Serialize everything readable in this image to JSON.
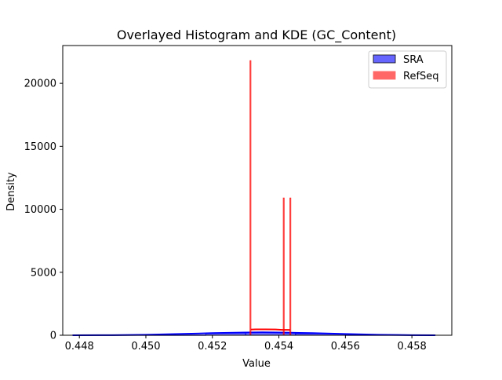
{
  "chart_data": {
    "type": "histogram",
    "title": "Overlayed Histogram and KDE (GC_Content)",
    "xlabel": "Value",
    "ylabel": "Density",
    "xlim": [
      0.4475,
      0.4592
    ],
    "ylim": [
      0,
      23000
    ],
    "x_ticks": [
      0.448,
      0.45,
      0.452,
      0.454,
      0.456,
      0.458
    ],
    "x_tick_labels": [
      "0.448",
      "0.450",
      "0.452",
      "0.454",
      "0.456",
      "0.458"
    ],
    "y_ticks": [
      0,
      5000,
      10000,
      15000,
      20000
    ],
    "y_tick_labels": [
      "0",
      "5000",
      "10000",
      "15000",
      "20000"
    ],
    "legend": {
      "placement": "top-right",
      "entries": [
        {
          "label": "SRA",
          "color": "#6666ff",
          "edge": "#000000"
        },
        {
          "label": "RefSeq",
          "color": "#ff6666",
          "edge": "#ff6666"
        }
      ]
    },
    "series": [
      {
        "name": "SRA",
        "color": "#0000ff",
        "bars": [
          {
            "x0": 0.4478,
            "x1": 0.4518,
            "value": 20
          },
          {
            "x0": 0.4518,
            "x1": 0.453,
            "value": 180
          },
          {
            "x0": 0.453,
            "x1": 0.4545,
            "value": 220
          },
          {
            "x0": 0.4545,
            "x1": 0.456,
            "value": 120
          },
          {
            "x0": 0.456,
            "x1": 0.4587,
            "value": 20
          }
        ],
        "kde": {
          "x": [
            0.4478,
            0.449,
            0.45,
            0.451,
            0.452,
            0.453,
            0.4535,
            0.454,
            0.455,
            0.456,
            0.457,
            0.458,
            0.4587
          ],
          "y": [
            0,
            10,
            40,
            100,
            170,
            220,
            230,
            220,
            170,
            100,
            40,
            10,
            0
          ]
        }
      },
      {
        "name": "RefSeq",
        "color": "#ff0000",
        "bars": [
          {
            "x0": 0.45313,
            "x1": 0.45316,
            "value": 21800
          },
          {
            "x0": 0.45413,
            "x1": 0.45416,
            "value": 10900
          },
          {
            "x0": 0.45433,
            "x1": 0.45436,
            "value": 10900
          }
        ],
        "kde": {
          "x": [
            0.45315,
            0.4533,
            0.4536,
            0.4539,
            0.4541,
            0.45425,
            0.45434
          ],
          "y": [
            450,
            470,
            470,
            460,
            430,
            430,
            420
          ]
        }
      }
    ]
  }
}
